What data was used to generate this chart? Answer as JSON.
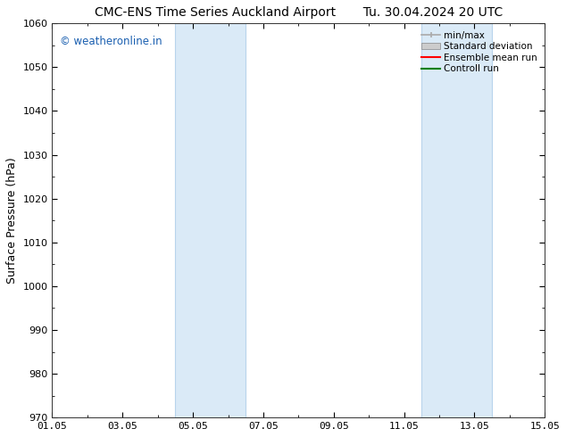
{
  "title_left": "CMC-ENS Time Series Auckland Airport",
  "title_right": "Tu. 30.04.2024 20 UTC",
  "ylabel": "Surface Pressure (hPa)",
  "ylim": [
    970,
    1060
  ],
  "yticks": [
    970,
    980,
    990,
    1000,
    1010,
    1020,
    1030,
    1040,
    1050,
    1060
  ],
  "xlim_start": 0,
  "xlim_end": 14,
  "xtick_labels": [
    "01.05",
    "03.05",
    "05.05",
    "07.05",
    "09.05",
    "11.05",
    "13.05",
    "15.05"
  ],
  "xtick_positions": [
    0,
    2,
    4,
    6,
    8,
    10,
    12,
    14
  ],
  "shaded_regions": [
    {
      "x_start": 3.5,
      "x_end": 5.5,
      "color": "#daeaf7"
    },
    {
      "x_start": 10.5,
      "x_end": 12.5,
      "color": "#daeaf7"
    }
  ],
  "shade_line_color": "#b8d4ec",
  "bg_color": "#ffffff",
  "plot_bg_color": "#ffffff",
  "watermark_text": "© weatheronline.in",
  "watermark_color": "#1a5fb0",
  "watermark_fontsize": 8.5,
  "legend_items": [
    {
      "label": "min/max",
      "color": "#aaaaaa",
      "style": "minmax"
    },
    {
      "label": "Standard deviation",
      "color": "#cccccc",
      "style": "stddev"
    },
    {
      "label": "Ensemble mean run",
      "color": "#ff0000",
      "style": "line"
    },
    {
      "label": "Controll run",
      "color": "#008000",
      "style": "line"
    }
  ],
  "title_fontsize": 10,
  "axis_label_fontsize": 9,
  "tick_fontsize": 8,
  "legend_fontsize": 7.5
}
